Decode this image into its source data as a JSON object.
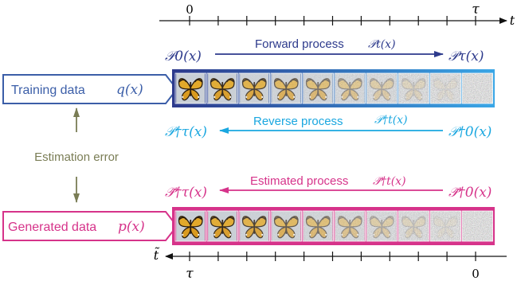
{
  "axes": {
    "top": {
      "var": "t",
      "start_tick": "0",
      "end_tick": "τ"
    },
    "bottom": {
      "var": "t̃",
      "start_tick": "τ",
      "end_tick": "0"
    }
  },
  "forward": {
    "label": "Forward process",
    "label_math": "𝒫t(x)",
    "left_math": "𝒫0(x)",
    "right_math": "𝒫τ(x)",
    "color": "#2d3a8c"
  },
  "reverse": {
    "label": "Reverse process",
    "label_math": "𝒫†t(x)",
    "left_math": "𝒫†τ(x)",
    "right_math": "𝒫†0(x)",
    "color": "#1aa7e0"
  },
  "estimated": {
    "label": "Estimated process",
    "label_math": "𝒫̃†t(x)",
    "left_math": "𝒫̃†τ(x)",
    "right_math": "𝒫̃†0(x)",
    "color": "#d6338a"
  },
  "training": {
    "label": "Training data",
    "math": "q(x)",
    "color": "#3b5ea8"
  },
  "generated": {
    "label": "Generated data",
    "math": "p(x)",
    "color": "#d6338a"
  },
  "estimation": {
    "label": "Estimation error",
    "color": "#7a7d55"
  },
  "strips": {
    "frames": 10,
    "noise_levels": [
      0,
      0.08,
      0.2,
      0.33,
      0.46,
      0.6,
      0.72,
      0.84,
      0.93,
      1.0
    ]
  }
}
